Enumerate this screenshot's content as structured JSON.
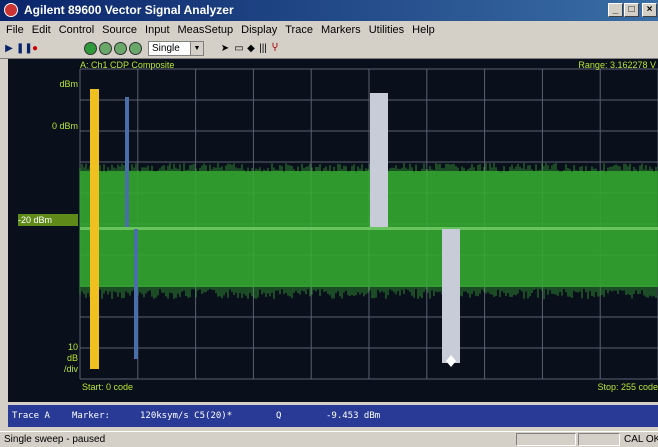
{
  "window": {
    "title": "Agilent 89600 Vector Signal Analyzer"
  },
  "menu": [
    "File",
    "Edit",
    "Control",
    "Source",
    "Input",
    "MeasSetup",
    "Display",
    "Trace",
    "Markers",
    "Utilities",
    "Help"
  ],
  "toolbar": {
    "mode": "Single"
  },
  "graph": {
    "title": "A: Ch1 CDP Composite",
    "range": "Range: 3.162278 V",
    "y_top_label": "dBm",
    "ref_label": "0 dBm",
    "ref_value": "-20 dBm",
    "scale_value": "10",
    "scale_unit": "dB",
    "scale_div": "/div",
    "start": "Start: 0 code",
    "stop": "Stop: 255 code",
    "colors": {
      "trace": "#2e9a2a",
      "marker": "#f0c020",
      "bar": "#c8ccd8",
      "text": "#b8e830"
    }
  },
  "marker": {
    "trace": "Trace A",
    "label": "Marker:",
    "rate": "120ksym/s C5(20)*",
    "channel": "Q",
    "value": "-9.453 dBm"
  },
  "status": {
    "left": "Single sweep - paused",
    "right": "CAL OK"
  }
}
